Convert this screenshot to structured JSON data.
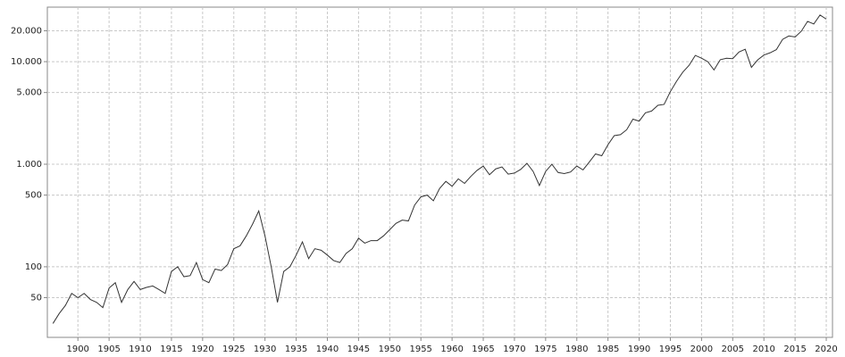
{
  "chart_data": {
    "type": "line",
    "log_scale_y": true,
    "grid": true,
    "x": [
      1896,
      1897,
      1898,
      1899,
      1900,
      1901,
      1902,
      1903,
      1904,
      1905,
      1906,
      1907,
      1908,
      1909,
      1910,
      1911,
      1912,
      1913,
      1914,
      1915,
      1916,
      1917,
      1918,
      1919,
      1920,
      1921,
      1922,
      1923,
      1924,
      1925,
      1926,
      1927,
      1928,
      1929,
      1930,
      1931,
      1932,
      1933,
      1934,
      1935,
      1936,
      1937,
      1938,
      1939,
      1940,
      1941,
      1942,
      1943,
      1944,
      1945,
      1946,
      1947,
      1948,
      1949,
      1950,
      1951,
      1952,
      1953,
      1954,
      1955,
      1956,
      1957,
      1958,
      1959,
      1960,
      1961,
      1962,
      1963,
      1964,
      1965,
      1966,
      1967,
      1968,
      1969,
      1970,
      1971,
      1972,
      1973,
      1974,
      1975,
      1976,
      1977,
      1978,
      1979,
      1980,
      1981,
      1982,
      1983,
      1984,
      1985,
      1986,
      1987,
      1988,
      1989,
      1990,
      1991,
      1992,
      1993,
      1994,
      1995,
      1996,
      1997,
      1998,
      1999,
      2000,
      2001,
      2002,
      2003,
      2004,
      2005,
      2006,
      2007,
      2008,
      2009,
      2010,
      2011,
      2012,
      2013,
      2014,
      2015,
      2016,
      2017,
      2018,
      2019,
      2020
    ],
    "series": [
      {
        "color": "#333333",
        "values": [
          28,
          35,
          42,
          55,
          50,
          55,
          48,
          45,
          40,
          62,
          70,
          45,
          60,
          72,
          60,
          63,
          65,
          60,
          55,
          90,
          100,
          80,
          82,
          110,
          75,
          70,
          95,
          92,
          105,
          150,
          160,
          200,
          260,
          350,
          200,
          100,
          45,
          90,
          100,
          130,
          175,
          120,
          150,
          145,
          130,
          115,
          110,
          135,
          150,
          190,
          170,
          180,
          180,
          200,
          230,
          265,
          285,
          280,
          400,
          480,
          500,
          440,
          580,
          680,
          610,
          720,
          650,
          760,
          870,
          960,
          790,
          900,
          940,
          800,
          820,
          890,
          1020,
          850,
          620,
          850,
          1000,
          830,
          810,
          840,
          960,
          880,
          1050,
          1260,
          1210,
          1550,
          1900,
          1940,
          2170,
          2750,
          2630,
          3170,
          3300,
          3750,
          3830,
          5100,
          6450,
          7900,
          9200,
          11500,
          10800,
          10000,
          8300,
          10450,
          10800,
          10700,
          12400,
          13200,
          8800,
          10400,
          11600,
          12200,
          13100,
          16500,
          17800,
          17400,
          19800,
          24700,
          23300,
          28500,
          26000
        ]
      }
    ],
    "xlim": [
      1895.1,
      2021
    ],
    "ylim": [
      20.5,
      34000
    ],
    "xticks": [
      1900,
      1905,
      1910,
      1915,
      1920,
      1925,
      1930,
      1935,
      1940,
      1945,
      1950,
      1955,
      1960,
      1965,
      1970,
      1975,
      1980,
      1985,
      1990,
      1995,
      2000,
      2005,
      2010,
      2015,
      2020
    ],
    "yticks": [
      50,
      100,
      500,
      {
        "value": 1000,
        "label": "1.000"
      },
      {
        "value": 5000,
        "label": "5.000"
      },
      {
        "value": 10000,
        "label": "10.000"
      },
      {
        "value": 20000,
        "label": "20.000"
      }
    ]
  }
}
